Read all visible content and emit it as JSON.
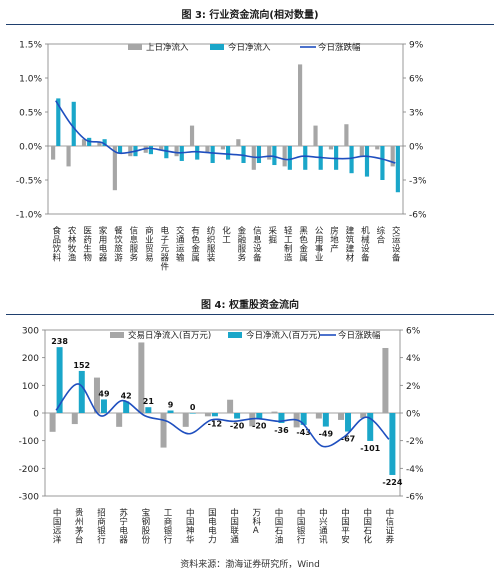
{
  "figure1": {
    "caption": "图 3:  行业资金流向(相对数量)",
    "chart_data": {
      "type": "bar",
      "categories": [
        "食品饮料",
        "农林牧渔",
        "医药生物",
        "家用电器",
        "餐饮旅游",
        "信息服务",
        "商业贸易",
        "电子元器件",
        "交通运输",
        "有色金属",
        "纺织服装",
        "化工",
        "金融服务",
        "信息设备",
        "采掘",
        "轻工制造",
        "黑色金属",
        "公用事业",
        "房地产",
        "建筑建材",
        "机械设备",
        "综合",
        "交运设备"
      ],
      "series": [
        {
          "name": "上日净流入",
          "axis": "left",
          "values": [
            -0.2,
            -0.3,
            0.1,
            0.05,
            -0.65,
            -0.15,
            -0.1,
            -0.05,
            -0.15,
            0.3,
            -0.1,
            -0.05,
            0.1,
            -0.35,
            -0.2,
            -0.3,
            1.2,
            0.3,
            -0.05,
            0.32,
            -0.15,
            -0.05,
            -0.3
          ]
        },
        {
          "name": "今日净流入",
          "axis": "left",
          "values": [
            0.7,
            0.65,
            0.12,
            0.1,
            -0.1,
            -0.15,
            -0.12,
            -0.18,
            -0.22,
            -0.2,
            -0.25,
            -0.2,
            -0.25,
            -0.25,
            -0.28,
            -0.35,
            -0.35,
            -0.35,
            -0.35,
            -0.4,
            -0.45,
            -0.5,
            -0.68
          ]
        },
        {
          "name": "今日涨跌幅",
          "axis": "right",
          "type": "line",
          "values": [
            4.0,
            1.9,
            0.5,
            0.3,
            -0.6,
            -0.5,
            -0.2,
            -0.4,
            -0.6,
            -0.5,
            -0.6,
            -0.7,
            -0.8,
            -1.0,
            -0.9,
            -1.2,
            -0.9,
            -1.0,
            -1.1,
            -1.1,
            -0.9,
            -1.1,
            -1.5
          ]
        }
      ],
      "ylim": [
        -1.0,
        1.5
      ],
      "yticks": [
        "1.5%",
        "1.0%",
        "0.5%",
        "0.0%",
        "-0.5%",
        "-1.0%"
      ],
      "y2lim": [
        -6,
        9
      ],
      "y2ticks": [
        "9%",
        "6%",
        "3%",
        "0%",
        "-3%",
        "-6%"
      ],
      "legend": "top"
    }
  },
  "figure2": {
    "caption": "图 4:  权重股资金流向",
    "chart_data": {
      "type": "bar",
      "categories": [
        "中国远洋",
        "贵州茅台",
        "招商银行",
        "苏宁电器",
        "宝钢股份",
        "工商银行",
        "中国神华",
        "国电电力",
        "中国联通",
        "万科A",
        "中国石油",
        "中国银行",
        "中兴通讯",
        "中国平安",
        "中国石化",
        "中信证券"
      ],
      "series": [
        {
          "name": "交易日净流入(百万元)",
          "axis": "left",
          "values": [
            -68,
            -40,
            128,
            -50,
            255,
            -125,
            -50,
            -12,
            48,
            -48,
            5,
            -52,
            -20,
            -25,
            -18,
            235
          ]
        },
        {
          "name": "今日净流入(百万元)",
          "axis": "left",
          "values": [
            238,
            152,
            49,
            42,
            21,
            9,
            0,
            -12,
            -20,
            -20,
            -36,
            -43,
            -49,
            -67,
            -101,
            -224
          ]
        },
        {
          "name": "今日涨跌幅",
          "axis": "right",
          "type": "line",
          "values": [
            0.2,
            2.1,
            -0.2,
            0.9,
            -0.2,
            -0.6,
            -1.5,
            -0.5,
            -0.6,
            -0.4,
            -0.6,
            -0.6,
            -2.4,
            -1.7,
            -0.3,
            -1.9
          ]
        }
      ],
      "data_labels": [
        "238",
        "152",
        "49",
        "42",
        "21",
        "9",
        "0",
        "-12",
        "-20",
        "-20",
        "-36",
        "-43",
        "-49",
        "-67",
        "-101",
        "-224"
      ],
      "ylim": [
        -300,
        300
      ],
      "yticks": [
        "300",
        "200",
        "100",
        "0",
        "-100",
        "-200",
        "-300"
      ],
      "y2lim": [
        -6,
        6
      ],
      "y2ticks": [
        "6%",
        "4%",
        "2%",
        "0%",
        "-2%",
        "-4%",
        "-6%"
      ],
      "legend": "top"
    }
  },
  "source": "资料来源：渤海证券研究所，Wind",
  "colors": {
    "gray": "#a6a6a6",
    "cyan": "#1aa6c9",
    "line": "#1f4fbf",
    "rule": "#1f3f6e"
  }
}
